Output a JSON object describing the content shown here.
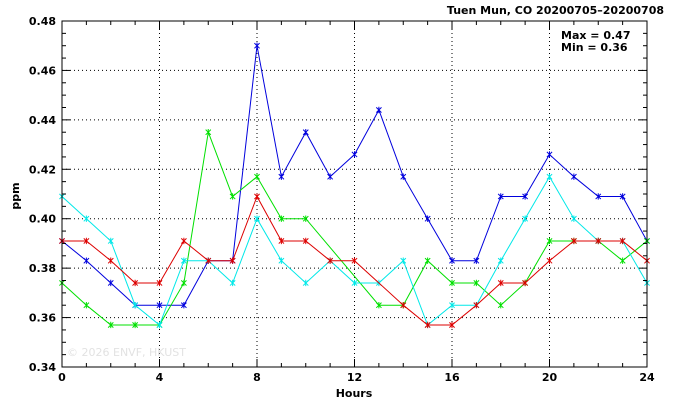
{
  "chart_data": {
    "type": "line",
    "title": "Tuen Mun, CO 20200705–20200708",
    "xlabel": "Hours",
    "ylabel": "ppm",
    "xlim": [
      0,
      24
    ],
    "ylim": [
      0.34,
      0.48
    ],
    "x_ticks": [
      0,
      4,
      8,
      12,
      16,
      20,
      24
    ],
    "y_ticks": [
      0.34,
      0.36,
      0.38,
      0.4,
      0.42,
      0.44,
      0.46,
      0.48
    ],
    "grid": true,
    "stats": {
      "max_label": "Max = 0.47",
      "min_label": "Min = 0.36"
    },
    "watermark": "© 2026 ENVF, HKUST",
    "x": [
      0,
      1,
      2,
      3,
      4,
      5,
      6,
      7,
      8,
      9,
      10,
      11,
      12,
      13,
      14,
      15,
      16,
      17,
      18,
      19,
      20,
      21,
      22,
      23,
      24
    ],
    "series": [
      {
        "color": "#0000dd",
        "values": [
          0.391,
          0.383,
          0.374,
          0.365,
          0.365,
          0.365,
          0.383,
          0.383,
          0.47,
          0.417,
          0.435,
          0.417,
          0.426,
          0.444,
          0.417,
          0.4,
          0.383,
          0.383,
          0.409,
          0.409,
          0.426,
          0.417,
          0.409,
          0.409,
          0.391
        ]
      },
      {
        "color": "#00e000",
        "values": [
          0.374,
          0.365,
          0.357,
          0.357,
          0.357,
          0.374,
          0.435,
          0.409,
          0.417,
          0.4,
          0.4,
          null,
          null,
          0.365,
          0.365,
          0.383,
          0.374,
          0.374,
          0.365,
          0.374,
          0.391,
          0.391,
          0.391,
          0.383,
          0.391
        ]
      },
      {
        "color": "#00e8e8",
        "values": [
          0.409,
          0.4,
          0.391,
          0.365,
          0.357,
          0.383,
          0.383,
          0.374,
          0.4,
          0.383,
          0.374,
          0.383,
          0.374,
          0.374,
          0.383,
          0.357,
          0.365,
          0.365,
          0.383,
          0.4,
          0.417,
          0.4,
          0.391,
          0.391,
          0.374
        ]
      },
      {
        "color": "#dd0000",
        "values": [
          0.391,
          0.391,
          0.383,
          0.374,
          0.374,
          0.391,
          0.383,
          0.383,
          0.409,
          0.391,
          0.391,
          0.383,
          0.383,
          null,
          0.365,
          0.357,
          0.357,
          0.365,
          0.374,
          0.374,
          0.383,
          0.391,
          0.391,
          0.391,
          0.383
        ]
      }
    ]
  }
}
